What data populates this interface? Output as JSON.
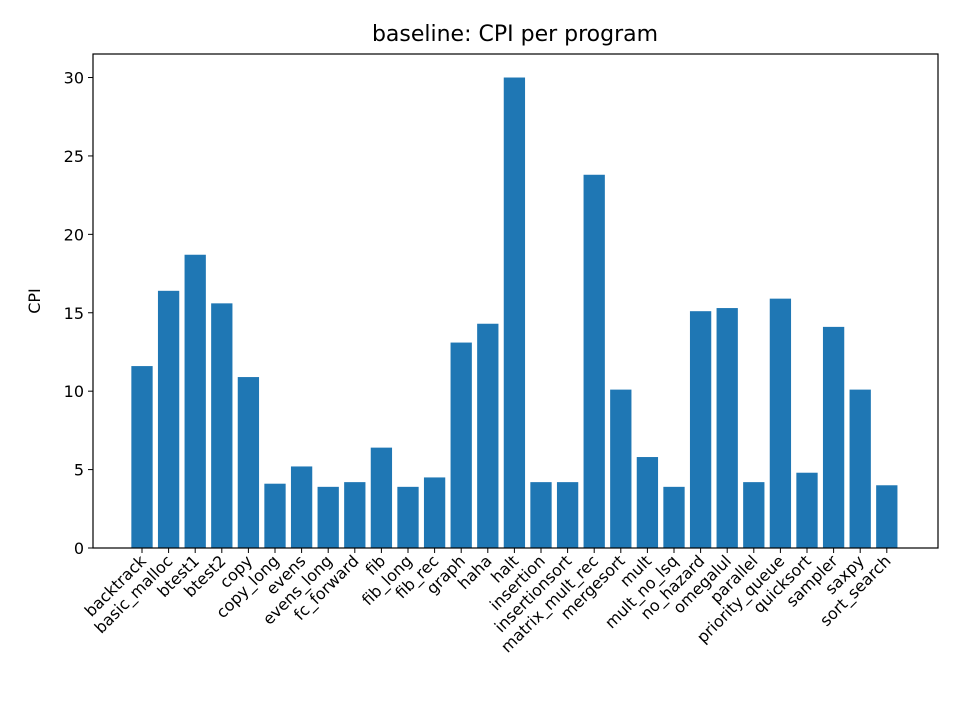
{
  "chart_data": {
    "type": "bar",
    "title": "baseline: CPI per program",
    "xlabel": "",
    "ylabel": "CPI",
    "ylim": [
      0,
      31.5
    ],
    "yticks": [
      0,
      5,
      10,
      15,
      20,
      25,
      30
    ],
    "grid": false,
    "bar_color": "#1f77b4",
    "categories": [
      "backtrack",
      "basic_malloc",
      "btest1",
      "btest2",
      "copy",
      "copy_long",
      "evens",
      "evens_long",
      "fc_forward",
      "fib",
      "fib_long",
      "fib_rec",
      "graph",
      "haha",
      "halt",
      "insertion",
      "insertionsort",
      "matrix_mult_rec",
      "mergesort",
      "mult",
      "mult_no_lsq",
      "no_hazard",
      "omegalul",
      "parallel",
      "priority_queue",
      "quicksort",
      "sampler",
      "saxpy",
      "sort_search"
    ],
    "values": [
      11.6,
      16.4,
      18.7,
      15.6,
      10.9,
      4.1,
      5.2,
      3.9,
      4.2,
      6.4,
      3.9,
      4.5,
      13.1,
      14.3,
      30.0,
      4.2,
      4.2,
      23.8,
      10.1,
      5.8,
      3.9,
      15.1,
      15.3,
      4.2,
      15.9,
      4.8,
      14.1,
      10.1,
      4.0
    ]
  }
}
